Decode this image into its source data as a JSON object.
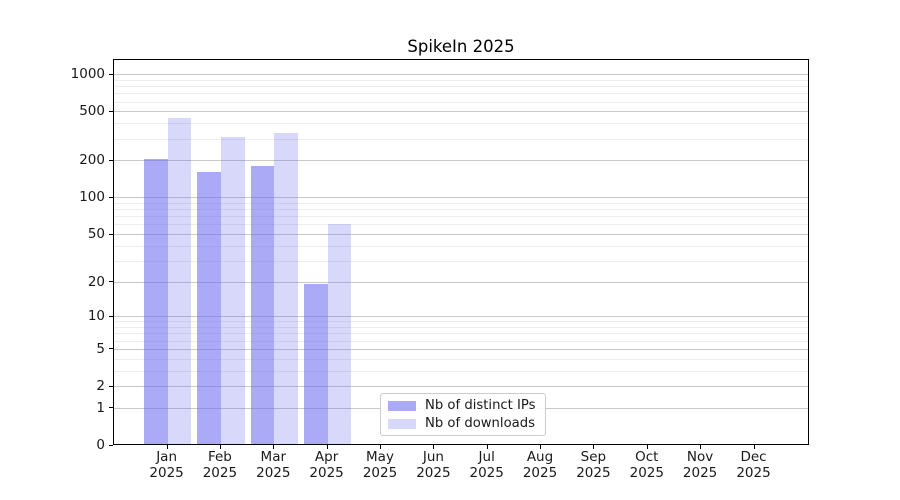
{
  "chart_data": {
    "type": "bar",
    "title": "SpikeIn 2025",
    "scale": "log10(1+x)",
    "categories": [
      "Jan",
      "Feb",
      "Mar",
      "Apr",
      "May",
      "Jun",
      "Jul",
      "Aug",
      "Sep",
      "Oct",
      "Nov",
      "Dec"
    ],
    "tick_year": "2025",
    "series": [
      {
        "name": "Nb of distinct IPs",
        "color": "rgba(100,100,240,0.55)",
        "color_on_white": "#aaaaf7",
        "values": [
          205,
          162,
          182,
          19,
          null,
          null,
          null,
          null,
          null,
          null,
          null,
          null
        ]
      },
      {
        "name": "Nb of downloads",
        "color": "rgba(100,100,240,0.25)",
        "color_on_white": "#d8d8fb",
        "values": [
          440,
          308,
          335,
          61,
          null,
          null,
          null,
          null,
          null,
          null,
          null,
          null
        ]
      }
    ],
    "y_ticks": [
      0,
      1,
      2,
      5,
      10,
      20,
      50,
      100,
      200,
      500,
      1000
    ],
    "y_minor_ticks": [
      3,
      4,
      6,
      7,
      8,
      9,
      30,
      40,
      60,
      70,
      80,
      90,
      300,
      400,
      600,
      700,
      800,
      900
    ],
    "ylim": [
      0,
      1330
    ],
    "grid": "horizontal major and minor",
    "legend_position": "lower center-left inside plot"
  },
  "colors": {
    "grid_major": "#c9c9c9",
    "grid_minor": "#ededed",
    "axis": "#000000",
    "text": "#1a1a1a",
    "legend_border": "#cccccc",
    "background": "#ffffff"
  }
}
